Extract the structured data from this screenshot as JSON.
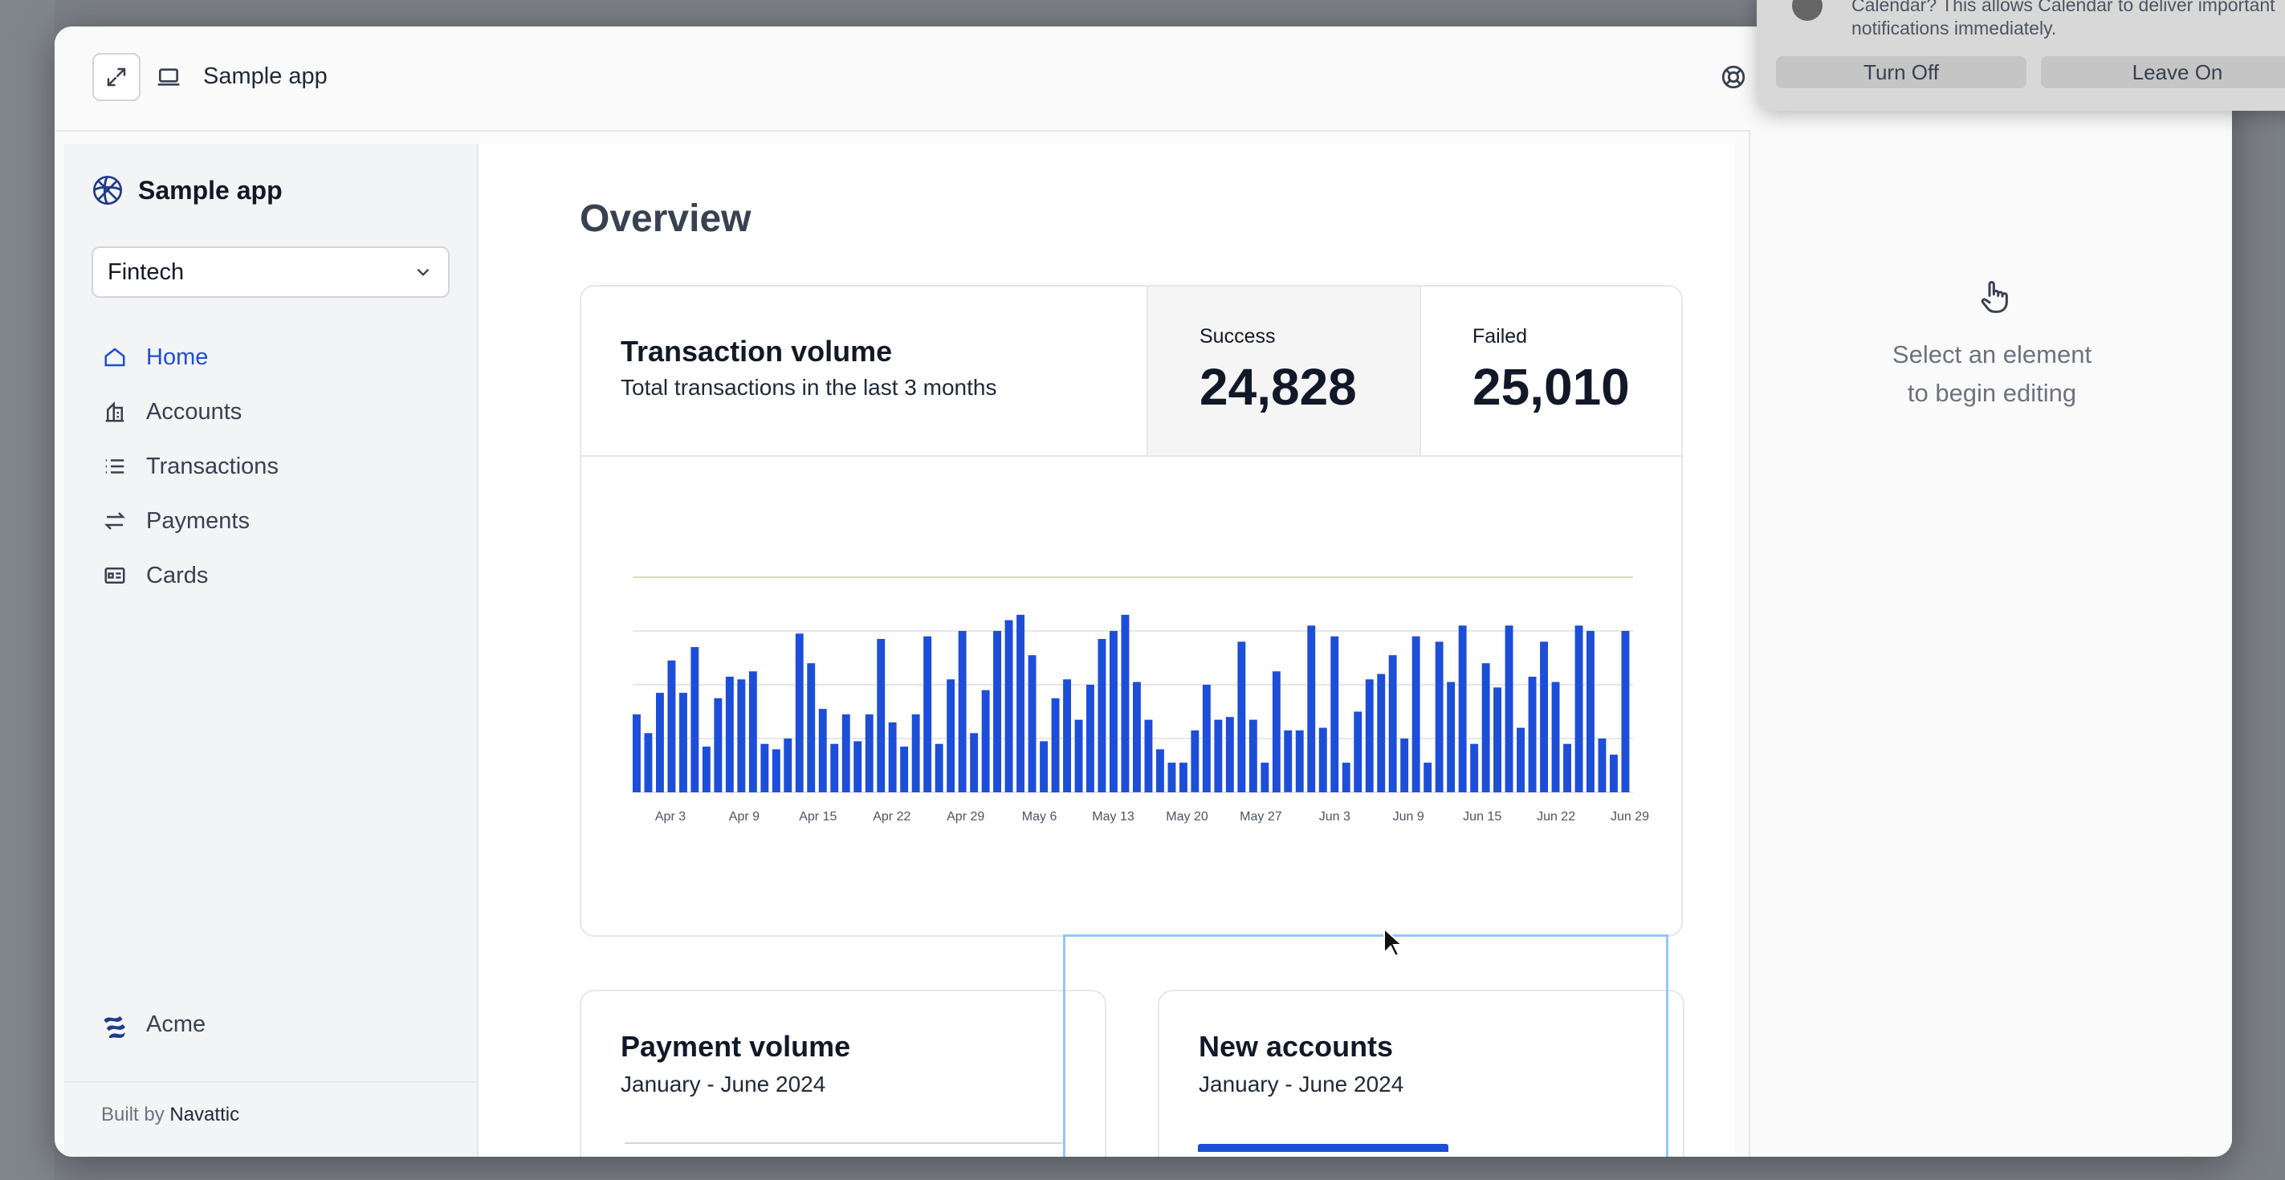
{
  "window": {
    "title": "Sample app"
  },
  "sidebar": {
    "brand": "Sample app",
    "selector_value": "Fintech",
    "items": [
      {
        "label": "Home",
        "icon": "home-icon",
        "active": true
      },
      {
        "label": "Accounts",
        "icon": "bank-icon",
        "active": false
      },
      {
        "label": "Transactions",
        "icon": "list-icon",
        "active": false
      },
      {
        "label": "Payments",
        "icon": "arrows-icon",
        "active": false
      },
      {
        "label": "Cards",
        "icon": "card-icon",
        "active": false
      }
    ],
    "org": "Acme",
    "built_by_prefix": "Built by",
    "built_by_name": "Navattic"
  },
  "main": {
    "title": "Overview",
    "transaction_card": {
      "title": "Transaction volume",
      "subtitle": "Total transactions in the last 3 months",
      "success_label": "Success",
      "success_value": "24,828",
      "failed_label": "Failed",
      "failed_value": "25,010"
    },
    "payment_card": {
      "title": "Payment volume",
      "subtitle": "January - June 2024"
    },
    "accounts_card": {
      "title": "New accounts",
      "subtitle": "January - June 2024"
    }
  },
  "right_panel": {
    "line1": "Select an element",
    "line2": "to begin editing"
  },
  "notification": {
    "line1": "Calendar? This allows Calendar to deliver important",
    "line2": "notifications immediately.",
    "button_off": "Turn Off",
    "button_on": "Leave On"
  },
  "colors": {
    "accent": "#1d4ed8",
    "bar": "#1d4ed8",
    "selection": "#93c5fd"
  },
  "chart_data": {
    "type": "bar",
    "tick_labels": [
      "Apr 3",
      "Apr 9",
      "Apr 15",
      "Apr 22",
      "Apr 29",
      "May 6",
      "May 13",
      "May 20",
      "May 27",
      "Jun 3",
      "Jun 9",
      "Jun 15",
      "Jun 22",
      "Jun 29"
    ],
    "values": [
      290,
      220,
      370,
      490,
      370,
      540,
      170,
      350,
      430,
      420,
      450,
      180,
      160,
      200,
      590,
      480,
      310,
      180,
      290,
      190,
      290,
      570,
      260,
      170,
      290,
      580,
      180,
      420,
      600,
      220,
      380,
      600,
      640,
      660,
      510,
      190,
      350,
      420,
      270,
      400,
      570,
      600,
      660,
      410,
      270,
      160,
      110,
      110,
      230,
      400,
      270,
      280,
      560,
      270,
      110,
      450,
      230,
      230,
      620,
      240,
      580,
      110,
      300,
      420,
      440,
      510,
      200,
      580,
      110,
      560,
      410,
      620,
      180,
      480,
      390,
      620,
      240,
      430,
      560,
      410,
      180,
      620,
      600,
      200,
      140,
      600
    ],
    "ylim": [
      0,
      800
    ],
    "grid": true
  }
}
